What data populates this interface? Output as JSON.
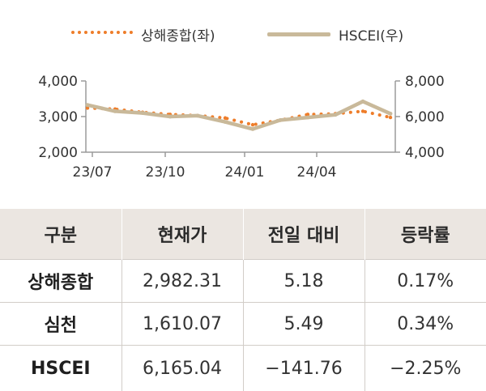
{
  "chart_data": {
    "type": "line",
    "x_ticks": [
      "23/07",
      "23/10",
      "24/01",
      "24/04"
    ],
    "y_left": {
      "ticks": [
        "4,000",
        "3,000",
        "2,000"
      ],
      "range": [
        2000,
        4000
      ]
    },
    "y_right": {
      "ticks": [
        "8,000",
        "6,000",
        "4,000"
      ],
      "range": [
        4000,
        8000
      ]
    },
    "series": [
      {
        "name": "상해종합(좌)",
        "axis": "left",
        "style": "dotted",
        "color": "#ee7d2a",
        "x": [
          "23/07",
          "23/08",
          "23/09",
          "23/10",
          "23/11",
          "23/12",
          "24/01",
          "24/02",
          "24/03",
          "24/04",
          "24/05",
          "24/06"
        ],
        "values": [
          3240,
          3210,
          3120,
          3060,
          3030,
          2960,
          2770,
          2900,
          3060,
          3080,
          3150,
          2975
        ]
      },
      {
        "name": "HSCEI(우)",
        "axis": "right",
        "style": "solid",
        "color": "#c9b99a",
        "x": [
          "23/07",
          "23/08",
          "23/09",
          "23/10",
          "23/11",
          "23/12",
          "24/01",
          "24/02",
          "24/03",
          "24/04",
          "24/05",
          "24/06"
        ],
        "values": [
          6650,
          6300,
          6200,
          6000,
          6050,
          5700,
          5300,
          5800,
          5950,
          6100,
          6850,
          6165
        ]
      }
    ]
  },
  "table": {
    "headers": [
      "구분",
      "현재가",
      "전일 대비",
      "등락률"
    ],
    "rows": [
      [
        "상해종합",
        "2,982.31",
        "5.18",
        "0.17%"
      ],
      [
        "심천",
        "1,610.07",
        "5.49",
        "0.34%"
      ],
      [
        "HSCEI",
        "6,165.04",
        "−141.76",
        "−2.25%"
      ]
    ]
  }
}
